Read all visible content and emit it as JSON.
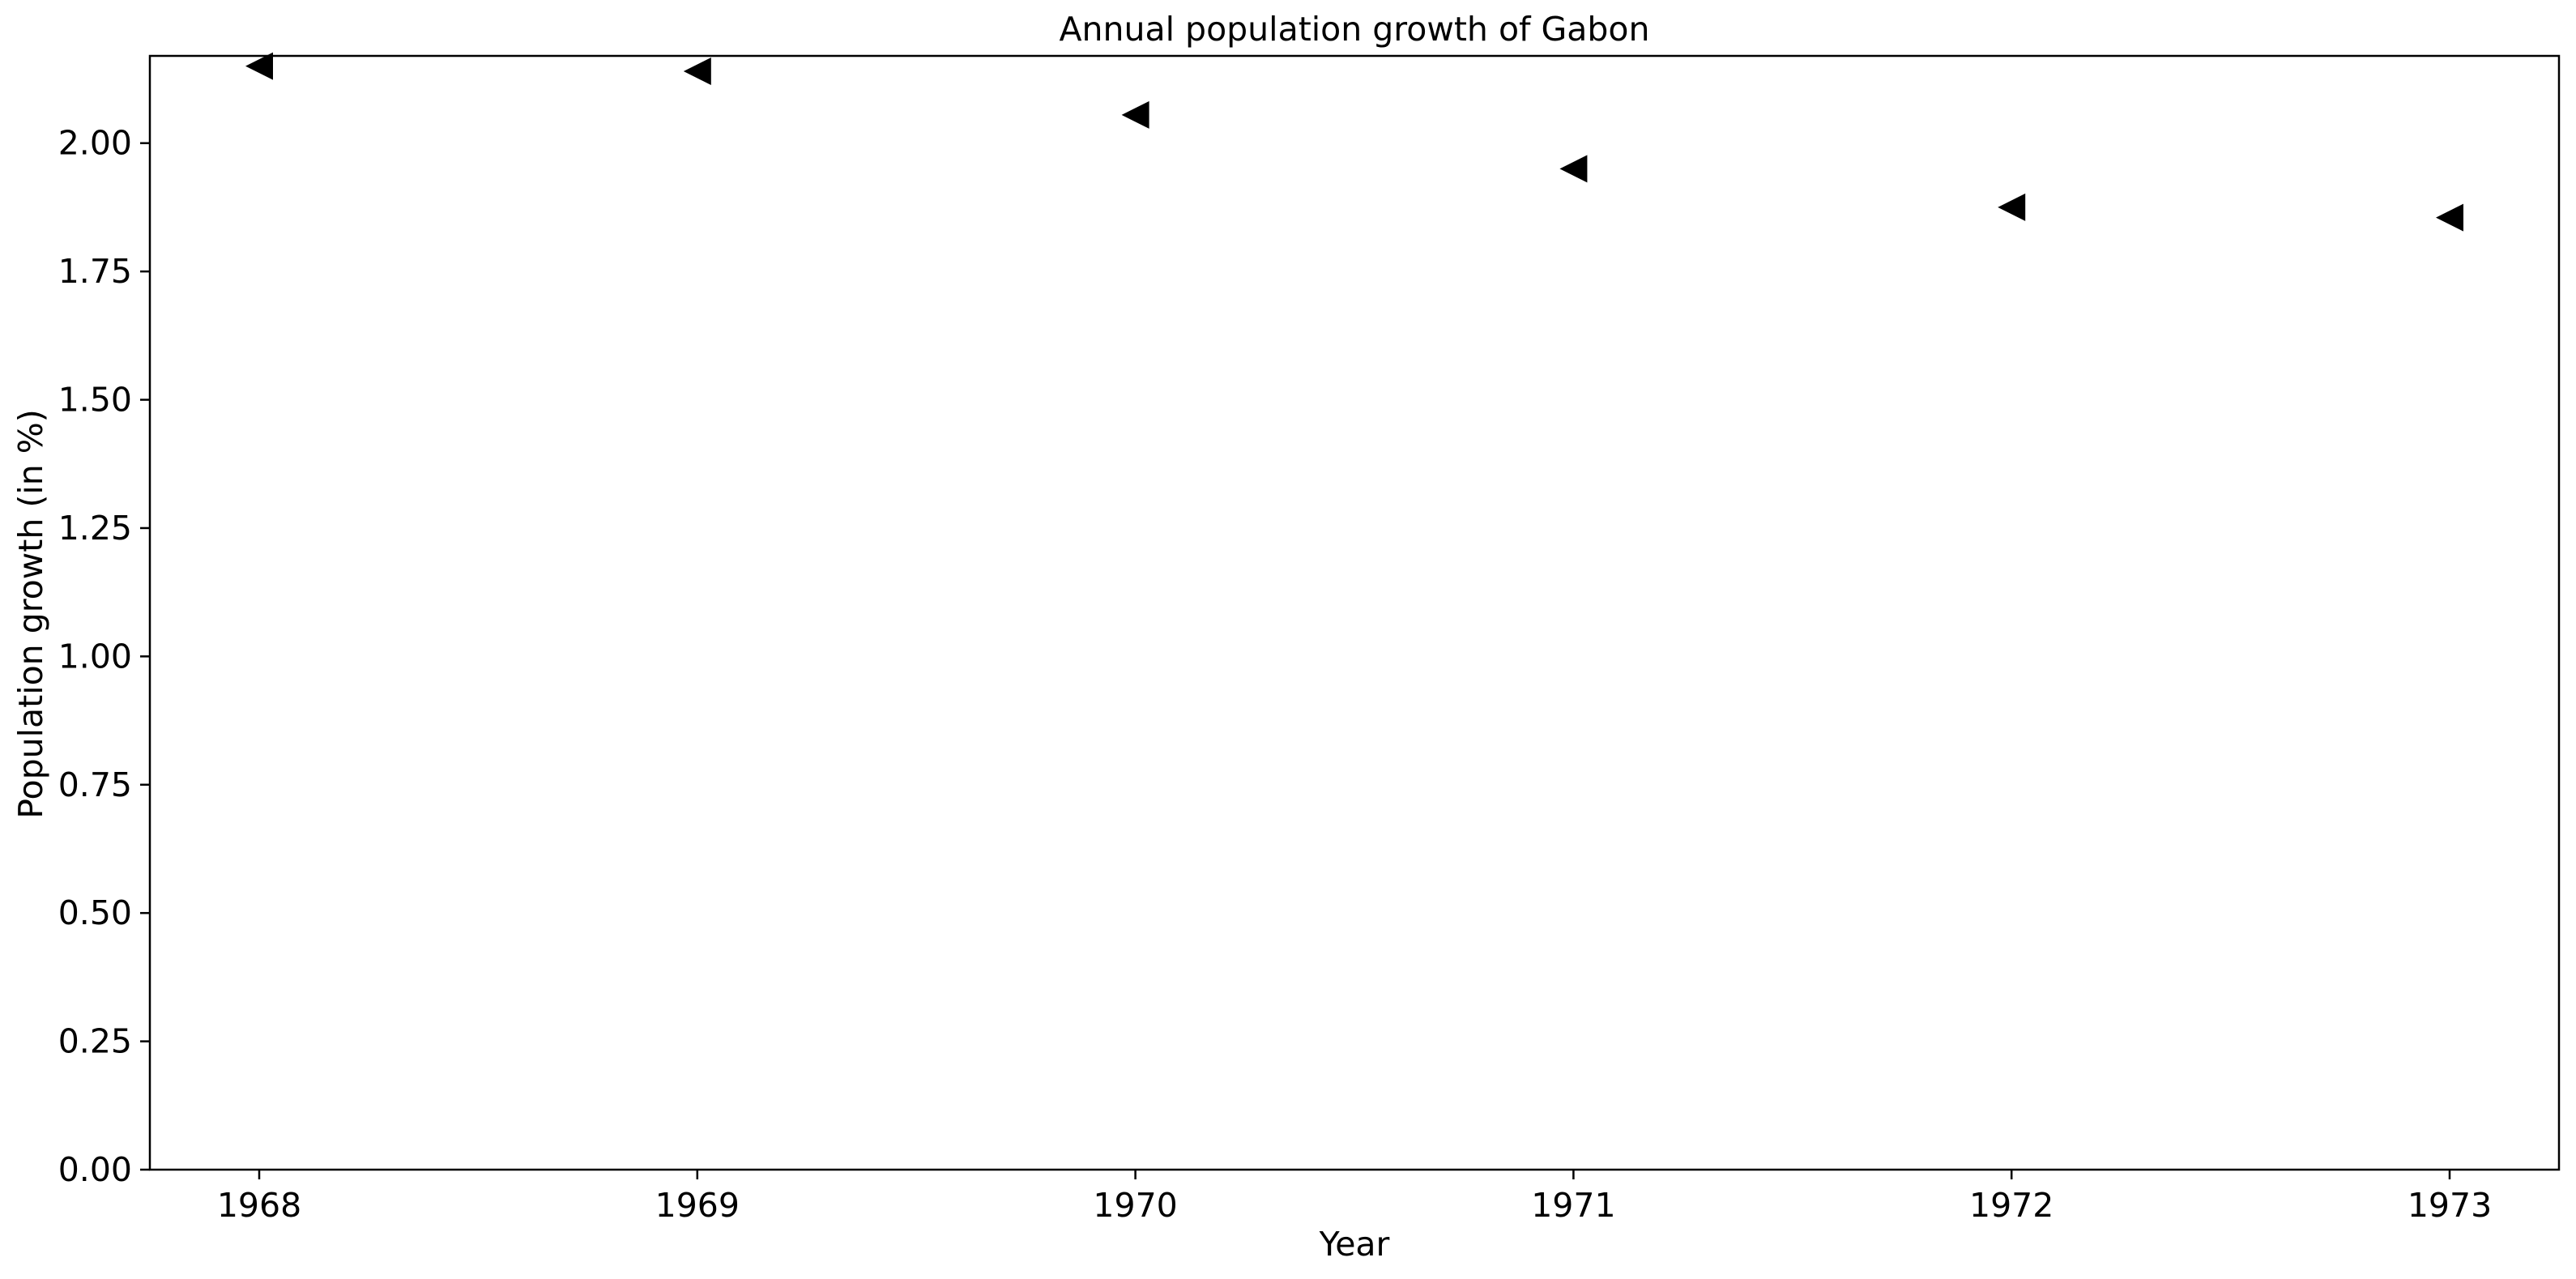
{
  "chart_data": {
    "type": "scatter",
    "title": "Annual population growth of Gabon",
    "xlabel": "Year",
    "ylabel": "Population growth (in %)",
    "x": [
      "1968",
      "1969",
      "1970",
      "1971",
      "1972",
      "1973"
    ],
    "series": [
      {
        "values": [
          2.15,
          2.14,
          2.055,
          1.95,
          1.875,
          1.855
        ]
      }
    ],
    "ylim": [
      0,
      2.17
    ],
    "yticks": [
      "0.00",
      "0.25",
      "0.50",
      "0.75",
      "1.00",
      "1.25",
      "1.50",
      "1.75",
      "2.00"
    ],
    "marker": "triangle-left",
    "marker_color": "#000000",
    "grid": false,
    "legend": "none"
  }
}
